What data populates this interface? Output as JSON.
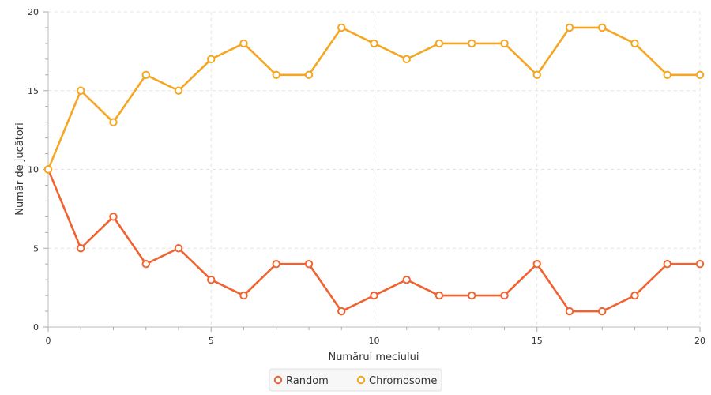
{
  "chart_data": {
    "type": "line",
    "x": [
      0,
      1,
      2,
      3,
      4,
      5,
      6,
      7,
      8,
      9,
      10,
      11,
      12,
      13,
      14,
      15,
      16,
      17,
      18,
      19,
      20
    ],
    "series": [
      {
        "name": "Random",
        "color": "#f06230",
        "values": [
          10,
          5,
          7,
          4,
          5,
          3,
          2,
          4,
          4,
          1,
          2,
          3,
          2,
          2,
          2,
          4,
          1,
          1,
          2,
          4,
          4
        ]
      },
      {
        "name": "Chromosome",
        "color": "#f5a623",
        "values": [
          10,
          15,
          13,
          16,
          15,
          17,
          18,
          16,
          16,
          19,
          18,
          17,
          18,
          18,
          18,
          16,
          19,
          19,
          18,
          16,
          16
        ]
      }
    ],
    "xlabel": "Numărul meciului",
    "ylabel": "Număr de jucători",
    "xlim": [
      0,
      20
    ],
    "ylim": [
      0,
      20
    ],
    "x_ticks": [
      0,
      5,
      10,
      15,
      20
    ],
    "y_ticks": [
      0,
      5,
      10,
      15,
      20
    ],
    "grid": true,
    "legend_position": "bottom-center"
  }
}
